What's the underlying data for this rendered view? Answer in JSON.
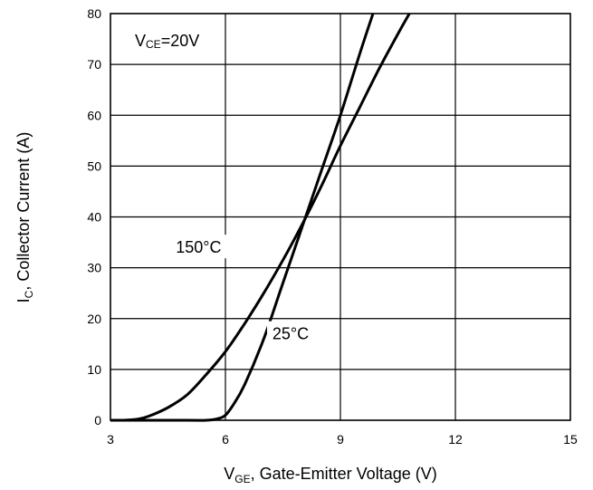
{
  "chart_data": {
    "type": "line",
    "xlabel": {
      "main": "V",
      "sub": "GE",
      "rest": ", Gate-Emitter Voltage (V)"
    },
    "ylabel": {
      "main": "I",
      "sub": "C",
      "rest": ", Collector Current (A)"
    },
    "xlim": [
      3,
      15
    ],
    "ylim": [
      0,
      80
    ],
    "xticks": [
      3,
      6,
      9,
      12,
      15
    ],
    "yticks": [
      0,
      10,
      20,
      30,
      40,
      50,
      60,
      70,
      80
    ],
    "grid": true,
    "condition": {
      "main": "V",
      "sub": "CE",
      "rest": "=20V"
    },
    "series": [
      {
        "name": "25°C",
        "x": [
          3.0,
          5.0,
          5.5,
          5.8,
          6.0,
          6.2,
          6.5,
          7.0,
          7.5,
          8.0,
          8.5,
          9.0,
          9.5,
          9.85
        ],
        "y": [
          0,
          0,
          0,
          0.3,
          1,
          3,
          7,
          16,
          27,
          38,
          49,
          60,
          72,
          80
        ]
      },
      {
        "name": "150°C",
        "x": [
          3.3,
          3.7,
          4.0,
          4.5,
          5.0,
          5.5,
          6.0,
          6.5,
          7.0,
          7.5,
          8.0,
          8.5,
          9.0,
          9.5,
          10.0,
          10.5,
          10.8
        ],
        "y": [
          0,
          0.2,
          0.8,
          2.5,
          5,
          9,
          13.5,
          19,
          25,
          31.5,
          38.5,
          46,
          54,
          61.5,
          69,
          76,
          80
        ]
      }
    ],
    "annotations": [
      {
        "text": "150°C",
        "x": 5.3,
        "y": 34
      },
      {
        "text": "25°C",
        "x": 7.7,
        "y": 17
      }
    ]
  }
}
